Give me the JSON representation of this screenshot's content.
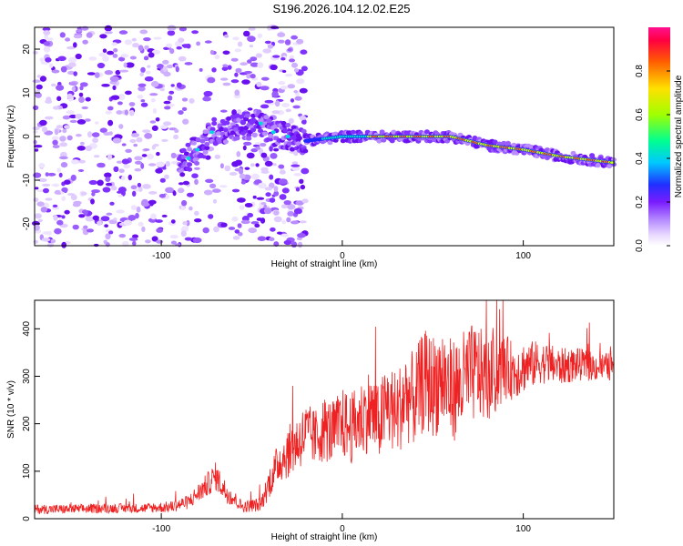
{
  "title": "S196.2026.104.12.02.E25",
  "chart_data": [
    {
      "type": "heatmap",
      "xlabel": "Height of straight line (km)",
      "ylabel": "Frequency (Hz)",
      "xlim": [
        -170,
        150
      ],
      "ylim": [
        -25,
        25
      ],
      "xticks": [
        -100,
        0,
        100
      ],
      "yticks": [
        -20,
        -10,
        0,
        10,
        20
      ],
      "ridge": [
        {
          "x": -88,
          "y": -6
        },
        {
          "x": -80,
          "y": -3
        },
        {
          "x": -72,
          "y": 1
        },
        {
          "x": -45,
          "y": 3
        },
        {
          "x": -40,
          "y": 1
        },
        {
          "x": -30,
          "y": 0
        },
        {
          "x": -20,
          "y": -1
        },
        {
          "x": -10,
          "y": -0.5
        },
        {
          "x": 0,
          "y": 0
        },
        {
          "x": 20,
          "y": 0
        },
        {
          "x": 40,
          "y": 0
        },
        {
          "x": 60,
          "y": 0
        },
        {
          "x": 80,
          "y": -2
        },
        {
          "x": 100,
          "y": -3
        },
        {
          "x": 120,
          "y": -4.5
        },
        {
          "x": 140,
          "y": -5.5
        },
        {
          "x": 150,
          "y": -6
        }
      ],
      "colorbar": {
        "label": "Normalized spectral amplitude",
        "range": [
          0,
          1
        ],
        "ticks": [
          "0.0",
          "0.2",
          "0.4",
          "0.6",
          "0.8"
        ]
      }
    },
    {
      "type": "line",
      "xlabel": "Height of straight line (km)",
      "ylabel": "SNR (10 * v/v)",
      "xlim": [
        -170,
        150
      ],
      "ylim": [
        0,
        460
      ],
      "xticks": [
        -100,
        0,
        100
      ],
      "yticks": [
        0,
        100,
        200,
        300,
        400
      ],
      "series": [
        {
          "name": "SNR",
          "color": "#ee2222",
          "x": [
            -170,
            -150,
            -130,
            -110,
            -95,
            -85,
            -75,
            -70,
            -65,
            -55,
            -45,
            -40,
            -35,
            -30,
            -25,
            -20,
            -15,
            -10,
            -5,
            0,
            5,
            10,
            15,
            20,
            25,
            30,
            35,
            40,
            45,
            50,
            55,
            60,
            65,
            70,
            75,
            80,
            85,
            90,
            95,
            100,
            110,
            120,
            130,
            140,
            150
          ],
          "values": [
            20,
            20,
            22,
            22,
            25,
            35,
            70,
            90,
            60,
            25,
            30,
            80,
            120,
            140,
            160,
            180,
            170,
            190,
            180,
            200,
            190,
            210,
            230,
            200,
            240,
            220,
            260,
            250,
            290,
            280,
            300,
            270,
            280,
            300,
            310,
            290,
            300,
            320,
            310,
            320,
            330,
            320,
            325,
            320,
            320
          ],
          "amplitude": [
            10,
            10,
            10,
            10,
            12,
            15,
            25,
            30,
            25,
            12,
            15,
            35,
            45,
            55,
            60,
            65,
            60,
            70,
            70,
            75,
            75,
            80,
            90,
            80,
            95,
            90,
            100,
            100,
            110,
            110,
            120,
            110,
            110,
            110,
            100,
            90,
            80,
            70,
            60,
            55,
            45,
            40,
            35,
            30,
            30
          ]
        }
      ]
    }
  ]
}
